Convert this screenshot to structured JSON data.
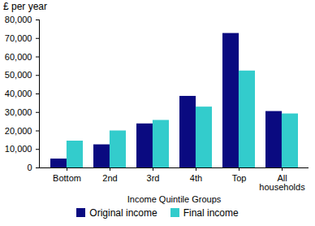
{
  "chart_data": {
    "type": "bar",
    "y_label": "£ per year",
    "x_label": "Income Quintile Groups",
    "categories": [
      "Bottom",
      "2nd",
      "3rd",
      "4th",
      "Top",
      "All households"
    ],
    "series": [
      {
        "name": "Original income",
        "color": "#0a0a80",
        "values": [
          4800,
          12500,
          23800,
          38700,
          72700,
          30500
        ]
      },
      {
        "name": "Final income",
        "color": "#33cccc",
        "values": [
          14500,
          20000,
          25700,
          32900,
          52400,
          29200
        ]
      }
    ],
    "ylim": [
      0,
      80000
    ],
    "yticks": [
      0,
      {
        "value": 10000,
        "label": "10,000"
      },
      {
        "value": 20000,
        "label": "20,000"
      },
      {
        "value": 30000,
        "label": "30,000"
      },
      {
        "value": 40000,
        "label": "40,000"
      },
      {
        "value": 50000,
        "label": "50,000"
      },
      {
        "value": 60000,
        "label": "60,000"
      },
      {
        "value": 70000,
        "label": "70,000"
      },
      {
        "value": 80000,
        "label": "80,000"
      }
    ],
    "grid": false,
    "legend": "bottom"
  }
}
